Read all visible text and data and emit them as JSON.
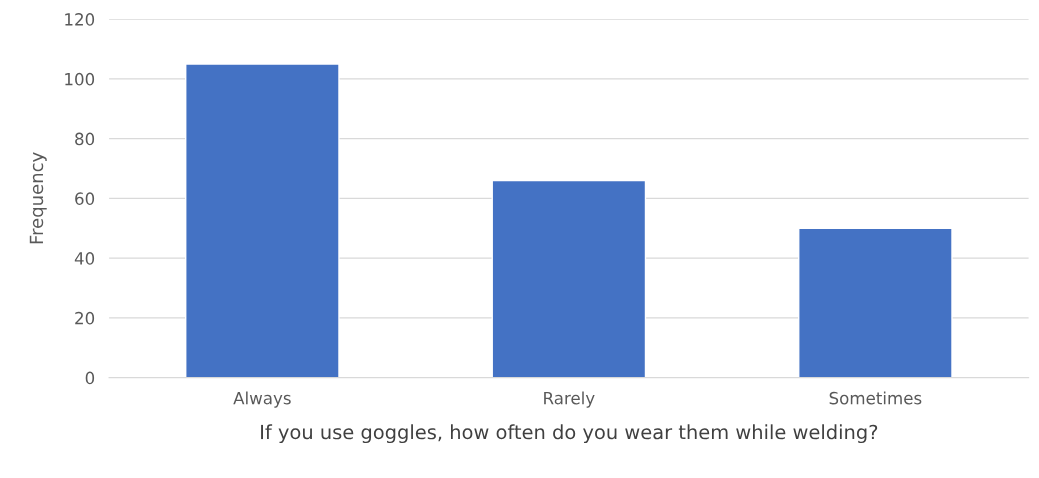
{
  "chart_data": {
    "type": "bar",
    "categories": [
      "Always",
      "Rarely",
      "Sometimes"
    ],
    "values": [
      105,
      66,
      50
    ],
    "color": "#4472c4",
    "xlabel": "If you use goggles, how often do you wear them while welding?",
    "ylabel": "Frequency",
    "ylim": [
      0,
      120
    ],
    "yticks": [
      0,
      20,
      40,
      60,
      80,
      100,
      120
    ],
    "grid": "y",
    "legend": false
  }
}
